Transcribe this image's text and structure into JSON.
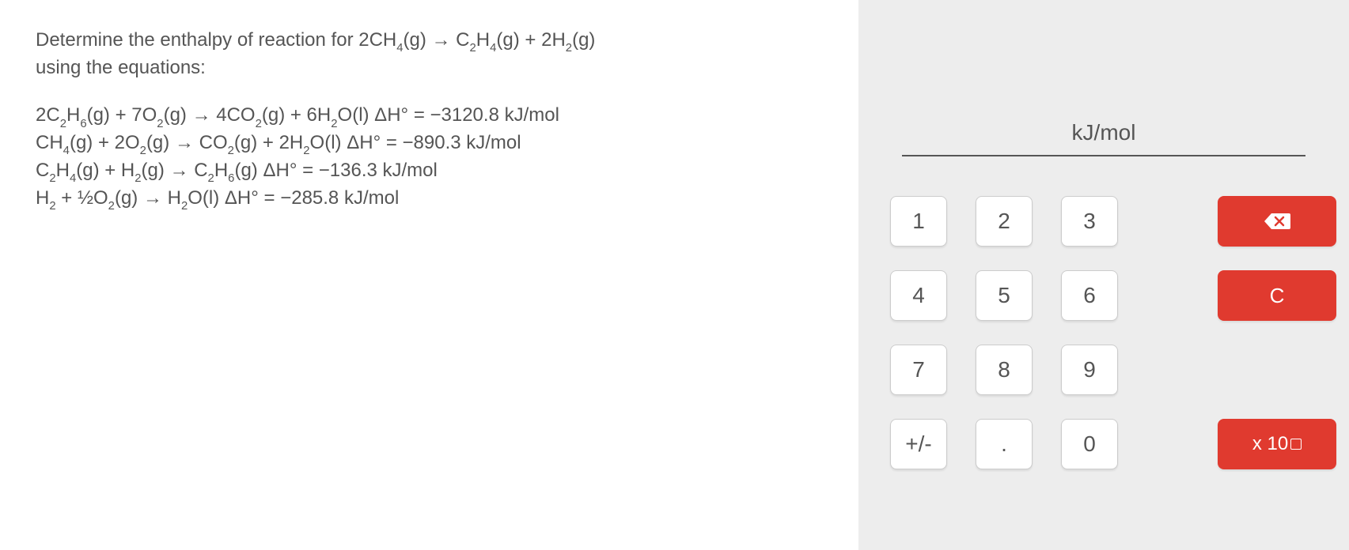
{
  "question": {
    "intro_line1_parts": [
      "Determine the enthalpy of reaction for 2CH",
      "4",
      "(g) → C",
      "2",
      "H",
      "4",
      "(g) + 2H",
      "2",
      "(g)"
    ],
    "intro_line2": "using the equations:",
    "equations": [
      {
        "parts": [
          "2C",
          "2",
          "H",
          "6",
          "(g) + 7O",
          "2",
          "(g) → 4CO",
          "2",
          "(g) + 6H",
          "2",
          "O(l) ΔH° = −3120.8 kJ/mol"
        ]
      },
      {
        "parts": [
          "CH",
          "4",
          "(g) + 2O",
          "2",
          "(g) → CO",
          "2",
          "(g) + 2H",
          "2",
          "O(l) ΔH° = −890.3 kJ/mol"
        ]
      },
      {
        "parts": [
          "C",
          "2",
          "H",
          "4",
          "(g) + H",
          "2",
          "(g) → C",
          "2",
          "H",
          "6",
          "(g) ΔH° = −136.3 kJ/mol"
        ]
      },
      {
        "parts": [
          "H",
          "2",
          " + ½O",
          "2",
          "(g) → H",
          "2",
          "O(l) ΔH° = −285.8 kJ/mol"
        ]
      }
    ]
  },
  "answer": {
    "value": "",
    "unit": "kJ/mol"
  },
  "keypad": {
    "rows": [
      [
        {
          "label": "1",
          "type": "num"
        },
        {
          "label": "2",
          "type": "num"
        },
        {
          "label": "3",
          "type": "num"
        },
        {
          "label": "",
          "type": "spacer"
        },
        {
          "label": "backspace",
          "type": "action"
        }
      ],
      [
        {
          "label": "4",
          "type": "num"
        },
        {
          "label": "5",
          "type": "num"
        },
        {
          "label": "6",
          "type": "num"
        },
        {
          "label": "",
          "type": "spacer"
        },
        {
          "label": "C",
          "type": "action"
        }
      ],
      [
        {
          "label": "7",
          "type": "num"
        },
        {
          "label": "8",
          "type": "num"
        },
        {
          "label": "9",
          "type": "num"
        },
        {
          "label": "",
          "type": "spacer"
        },
        {
          "label": "",
          "type": "spacer"
        }
      ],
      [
        {
          "label": "+/-",
          "type": "num"
        },
        {
          "label": ".",
          "type": "num"
        },
        {
          "label": "0",
          "type": "num"
        },
        {
          "label": "",
          "type": "spacer"
        },
        {
          "label": "x 10",
          "type": "exp"
        }
      ]
    ]
  },
  "colors": {
    "panel_bg": "#ededed",
    "text": "#555555",
    "key_bg": "#ffffff",
    "key_border": "#cccccc",
    "action_bg": "#e03a2f",
    "action_text": "#ffffff"
  },
  "typography": {
    "question_fontsize": 24,
    "answer_unit_fontsize": 28,
    "key_fontsize": 28
  }
}
